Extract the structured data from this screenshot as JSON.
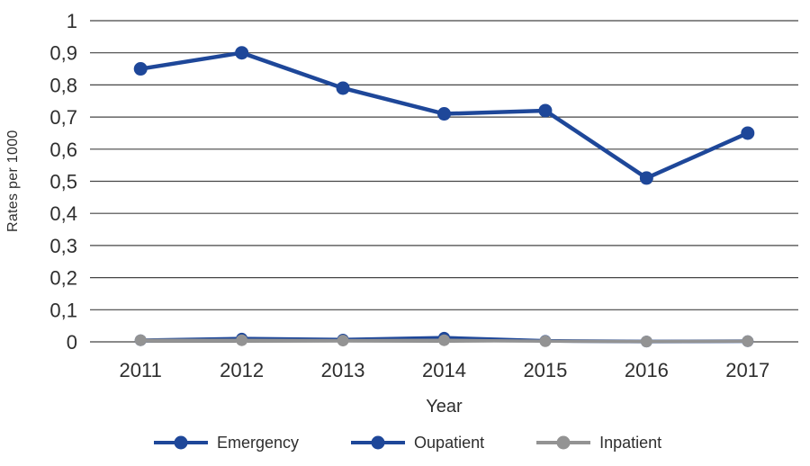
{
  "chart_data": {
    "type": "line",
    "title": "",
    "xlabel": "Year",
    "ylabel": "Rates per 1000",
    "categories": [
      "2011",
      "2012",
      "2013",
      "2014",
      "2015",
      "2016",
      "2017"
    ],
    "series": [
      {
        "name": "Emergency",
        "color": "#1E4799",
        "values": [
          0.85,
          0.9,
          0.79,
          0.71,
          0.72,
          0.51,
          0.65
        ]
      },
      {
        "name": "Oupatient",
        "color": "#1E4799",
        "values": [
          0.005,
          0.01,
          0.007,
          0.013,
          0.003,
          0.001,
          0.002
        ]
      },
      {
        "name": "Inpatient",
        "color": "#939393",
        "values": [
          0.005,
          0.005,
          0.004,
          0.005,
          0.002,
          0.001,
          0.002
        ]
      }
    ],
    "ylim": [
      0,
      1
    ],
    "ytick_step": 0.1,
    "ytick_labels": [
      "0",
      "0,1",
      "0,2",
      "0,3",
      "0,4",
      "0,5",
      "0,6",
      "0,7",
      "0,8",
      "0,9",
      "1"
    ],
    "grid": true,
    "legend_position": "bottom",
    "gridline_color": "#454545",
    "text_color": "#2e2e2e",
    "background_color": "#ffffff"
  }
}
